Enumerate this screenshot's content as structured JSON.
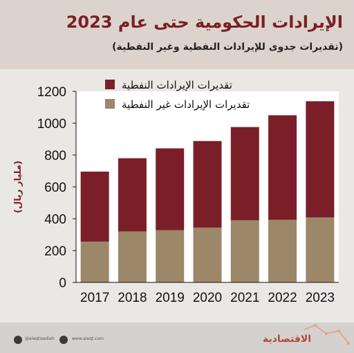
{
  "header": {
    "title": "الإيرادات الحكومية حتى عام 2023",
    "subtitle": "(تقديرات جدوى للإيرادات النفطية وغير النفطية)"
  },
  "footer": {
    "twitter_handle": "@aleqtisadiah",
    "website": "www.aleqt.com",
    "brand": "الاقتصادية",
    "icons": [
      "twitter-icon",
      "instagram-icon",
      "brand-trend-icon"
    ]
  },
  "colors": {
    "oil": "#7a1f28",
    "non_oil": "#9c8768",
    "header_bg": "#dcd4cc",
    "title": "#7a1f28"
  },
  "chart_data": {
    "type": "bar",
    "stacked": true,
    "categories": [
      "2017",
      "2018",
      "2019",
      "2020",
      "2021",
      "2022",
      "2023"
    ],
    "series": [
      {
        "name": "تقديرات الإيرادات غير النفطية",
        "values": [
          256,
          320,
          328,
          344,
          390,
          393,
          408
        ],
        "color": "#9c8768"
      },
      {
        "name": "تقديرات الإيرادات النفطية",
        "values": [
          440,
          460,
          514,
          544,
          586,
          657,
          730
        ],
        "color": "#7a1f28"
      }
    ],
    "legend_order": [
      "تقديرات الإيرادات النفطية",
      "تقديرات الإيرادات غير النفطية"
    ],
    "legend_position": "top-right",
    "ylabel": "(مليار ريال)",
    "xlabel": "",
    "ylim": [
      0,
      1200
    ],
    "yticks": [
      0,
      200,
      400,
      600,
      800,
      1000,
      1200
    ],
    "grid": false
  }
}
